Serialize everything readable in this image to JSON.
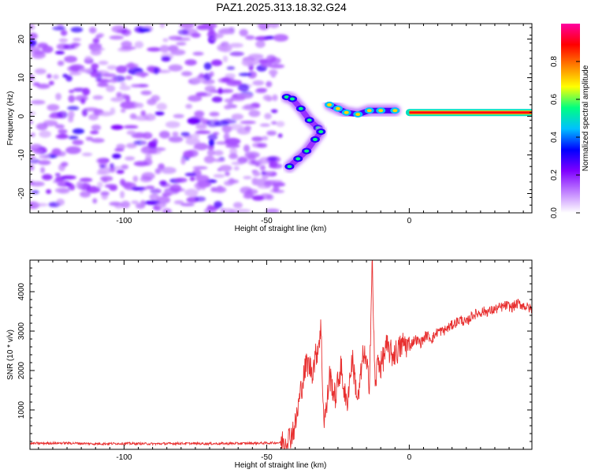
{
  "figure": {
    "title": "PAZ1.2025.313.18.32.G24"
  },
  "chart_data": [
    {
      "type": "heatmap",
      "title": "PAZ1.2025.313.18.32.G24",
      "xlabel": "Height of straight line (km)",
      "ylabel": "Frequency (Hz)",
      "xlim": [
        -133,
        43
      ],
      "ylim": [
        -25,
        24
      ],
      "x_ticks": [
        -100,
        -50,
        0
      ],
      "y_ticks": [
        -20,
        -10,
        0,
        10,
        20
      ],
      "colorbar": {
        "label": "Normalized spectral amplitude",
        "range": [
          0.0,
          1.0
        ],
        "ticks": [
          0.0,
          0.2,
          0.4,
          0.6,
          0.8
        ],
        "colormap": [
          "#ffffff",
          "#c080ff",
          "#7f00ff",
          "#0000ff",
          "#00c0ff",
          "#00ff80",
          "#ffff00",
          "#ff8000",
          "#ff0000",
          "#ff00a0"
        ]
      },
      "noise_region": {
        "x_range": [
          -133,
          -45
        ],
        "y_range": [
          -25,
          24
        ],
        "typical_amplitude": 0.1
      },
      "features": [
        {
          "name": "upper branch",
          "points": [
            [
              -43,
              5
            ],
            [
              -41,
              4.5
            ],
            [
              -38,
              2
            ],
            [
              -35,
              -1
            ],
            [
              -32,
              -3
            ]
          ],
          "amplitude": 0.3
        },
        {
          "name": "lower branch",
          "points": [
            [
              -42,
              -13
            ],
            [
              -39,
              -11
            ],
            [
              -36,
              -9
            ],
            [
              -33,
              -6
            ],
            [
              -31,
              -4
            ]
          ],
          "amplitude": 0.3
        },
        {
          "name": "merging signal",
          "points": [
            [
              -28,
              3
            ],
            [
              -25,
              2
            ],
            [
              -22,
              1
            ],
            [
              -18,
              0.5
            ],
            [
              -14,
              1.5
            ],
            [
              -10,
              1.5
            ],
            [
              -5,
              1.5
            ]
          ],
          "amplitude": 0.45
        },
        {
          "name": "stable carrier",
          "points": [
            [
              0,
              1
            ],
            [
              10,
              1
            ],
            [
              20,
              1
            ],
            [
              30,
              1
            ],
            [
              43,
              1
            ]
          ],
          "amplitude": 0.9
        }
      ]
    },
    {
      "type": "line",
      "title": "",
      "xlabel": "Height of straight line (km)",
      "ylabel": "SNR (10 * v/v)",
      "xlim": [
        -133,
        43
      ],
      "ylim": [
        0,
        4800
      ],
      "x_ticks": [
        -100,
        -50,
        0
      ],
      "y_ticks": [
        1000,
        2000,
        3000,
        4000
      ],
      "series": [
        {
          "name": "SNR",
          "color": "#e83030",
          "x": [
            -133,
            -120,
            -110,
            -100,
            -90,
            -80,
            -70,
            -60,
            -50,
            -45,
            -42,
            -40,
            -38,
            -36,
            -34,
            -32,
            -31,
            -30,
            -29,
            -28,
            -26,
            -24,
            -22,
            -20,
            -18,
            -16,
            -14,
            -13,
            -12.5,
            -12,
            -11,
            -10,
            -8,
            -6,
            -4,
            -2,
            0,
            2,
            4,
            6,
            8,
            10,
            12,
            14,
            16,
            18,
            20,
            22,
            24,
            26,
            28,
            30,
            32,
            34,
            36,
            38,
            40,
            43
          ],
          "values": [
            150,
            160,
            140,
            150,
            140,
            150,
            145,
            150,
            160,
            170,
            300,
            600,
            1500,
            2200,
            2000,
            2600,
            3100,
            800,
            1000,
            1900,
            1300,
            2100,
            1100,
            2300,
            1200,
            2500,
            1700,
            4800,
            3200,
            1500,
            2300,
            2100,
            2600,
            2400,
            2500,
            2700,
            2600,
            2800,
            2700,
            2900,
            2800,
            3000,
            3000,
            3100,
            3200,
            3300,
            3200,
            3400,
            3450,
            3500,
            3500,
            3550,
            3600,
            3650,
            3600,
            3700,
            3650,
            3550
          ]
        }
      ]
    }
  ]
}
